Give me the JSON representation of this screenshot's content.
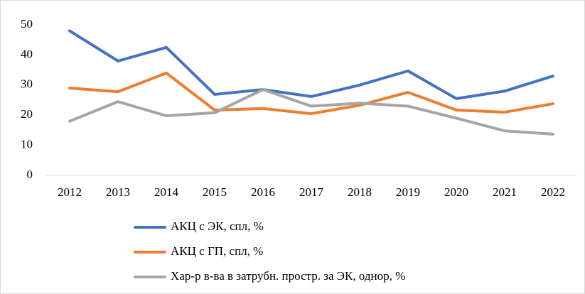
{
  "chart_data": {
    "type": "line",
    "categories": [
      "2012",
      "2013",
      "2014",
      "2015",
      "2016",
      "2017",
      "2018",
      "2019",
      "2020",
      "2021",
      "2022"
    ],
    "series": [
      {
        "name": "АКЦ с ЭК, спл, %",
        "color": "#4472c4",
        "values": [
          48,
          38,
          42.5,
          26.9,
          28.5,
          26.2,
          30,
          34.7,
          25.5,
          28,
          33
        ]
      },
      {
        "name": "АКЦ с ГП, спл, %",
        "color": "#ed7d31",
        "values": [
          29,
          27.8,
          34,
          21.7,
          22.2,
          20.5,
          23.3,
          27.6,
          21.7,
          21,
          23.8
        ]
      },
      {
        "name": "Хар-р в-ва в  затрубн. простр. за ЭК, однор, %",
        "color": "#a5a5a5",
        "values": [
          18,
          24.5,
          19.8,
          20.8,
          28.5,
          23,
          24,
          23,
          19,
          14.8,
          13.7
        ]
      }
    ],
    "ylim": [
      0,
      50
    ],
    "yticks": [
      0,
      10,
      20,
      30,
      40,
      50
    ],
    "grid": false,
    "legend": "bottom"
  }
}
